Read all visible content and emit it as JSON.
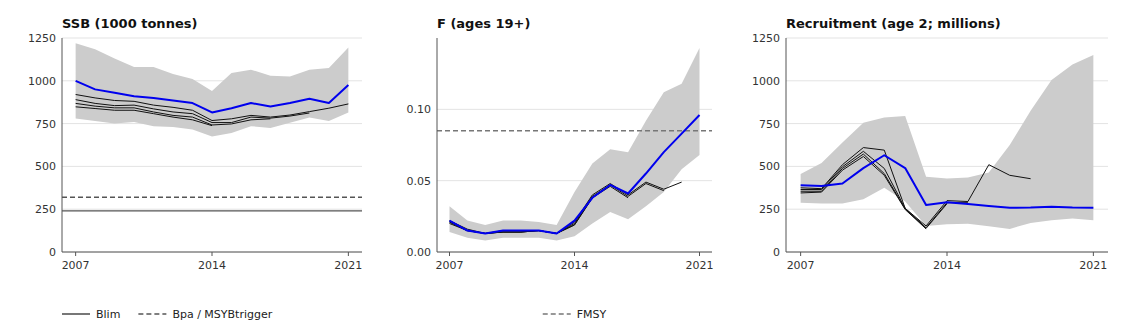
{
  "chart_data": [
    {
      "type": "line",
      "title": "SSB (1000 tonnes)",
      "x": [
        2007,
        2008,
        2009,
        2010,
        2011,
        2012,
        2013,
        2014,
        2015,
        2016,
        2017,
        2018,
        2019,
        2020,
        2021
      ],
      "xlim": [
        2006.3,
        2021.7
      ],
      "xticks": [
        2007,
        2014,
        2021
      ],
      "ylim": [
        0,
        1250
      ],
      "yticks": [
        0,
        250,
        500,
        750,
        1000,
        1250
      ],
      "grid": true,
      "legend": "lower left",
      "series": [
        {
          "color": "#111111",
          "values": [
            920,
            900,
            885,
            880,
            858,
            845,
            828,
            768,
            778,
            798,
            788,
            800,
            820,
            840,
            865
          ]
        },
        {
          "color": "#111111",
          "values": [
            890,
            868,
            855,
            858,
            836,
            818,
            808,
            756,
            756,
            788,
            782,
            794,
            812,
            null,
            null
          ]
        },
        {
          "color": "#111111",
          "values": [
            868,
            852,
            842,
            842,
            818,
            798,
            788,
            742,
            748,
            772,
            778,
            null,
            null,
            null,
            null
          ]
        },
        {
          "color": "#111111",
          "values": [
            848,
            838,
            828,
            828,
            808,
            788,
            772,
            738,
            null,
            null,
            null,
            null,
            null,
            null,
            null
          ]
        },
        {
          "color": "#0000EE",
          "values": [
            1000,
            950,
            930,
            910,
            900,
            885,
            870,
            815,
            840,
            870,
            850,
            870,
            895,
            870,
            975
          ],
          "band_color": "#CCCCCC",
          "upper": [
            1220,
            1185,
            1130,
            1080,
            1080,
            1040,
            1010,
            940,
            1045,
            1065,
            1030,
            1025,
            1065,
            1075,
            1195
          ],
          "lower": [
            780,
            765,
            750,
            760,
            735,
            730,
            715,
            675,
            695,
            735,
            725,
            755,
            785,
            765,
            815
          ]
        }
      ],
      "reference_lines": [
        {
          "name": "Blim",
          "value": 240,
          "color": "#555555",
          "line_style": "solid"
        },
        {
          "name": "Bpa / MSYBtrigger",
          "value": 320,
          "color": "#555555",
          "line_style": "dashed"
        }
      ]
    },
    {
      "type": "line",
      "title": "F (ages 19+)",
      "x": [
        2007,
        2008,
        2009,
        2010,
        2011,
        2012,
        2013,
        2014,
        2015,
        2016,
        2017,
        2018,
        2019,
        2020,
        2021
      ],
      "xlim": [
        2006.3,
        2021.7
      ],
      "xticks": [
        2007,
        2014,
        2021
      ],
      "ylim": [
        0.0,
        0.15
      ],
      "yticks": [
        {
          "value": 0.0,
          "label": "0.00"
        },
        {
          "value": 0.05,
          "label": "0.05"
        },
        {
          "value": 0.1,
          "label": "0.10"
        }
      ],
      "grid": true,
      "legend": "lower center",
      "series": [
        {
          "color": "#111111",
          "values": [
            0.022,
            0.016,
            0.013,
            0.015,
            0.015,
            0.015,
            0.013,
            0.021,
            0.04,
            0.048,
            0.04,
            0.049,
            0.044,
            0.049,
            null
          ]
        },
        {
          "color": "#111111",
          "values": [
            0.021,
            0.015,
            0.013,
            0.014,
            0.014,
            0.015,
            0.013,
            0.02,
            0.039,
            0.047,
            0.039,
            0.048,
            0.043,
            null,
            null
          ]
        },
        {
          "color": "#111111",
          "values": [
            0.021,
            0.015,
            0.013,
            0.014,
            0.014,
            0.015,
            0.013,
            0.019,
            0.038,
            0.046,
            0.038,
            null,
            null,
            null,
            null
          ]
        },
        {
          "color": "#111111",
          "values": [
            0.02,
            0.015,
            0.013,
            0.014,
            0.014,
            0.015,
            0.013,
            0.019,
            0.038,
            null,
            null,
            null,
            null,
            null,
            null
          ]
        },
        {
          "color": "#0000EE",
          "values": [
            0.022,
            0.015,
            0.013,
            0.015,
            0.015,
            0.015,
            0.013,
            0.022,
            0.038,
            0.047,
            0.041,
            0.055,
            0.07,
            0.083,
            0.096
          ],
          "band_color": "#CCCCCC",
          "upper": [
            0.032,
            0.022,
            0.019,
            0.022,
            0.022,
            0.021,
            0.019,
            0.042,
            0.062,
            0.072,
            0.07,
            0.092,
            0.112,
            0.118,
            0.143
          ],
          "lower": [
            0.014,
            0.01,
            0.008,
            0.01,
            0.01,
            0.01,
            0.008,
            0.011,
            0.02,
            0.028,
            0.023,
            0.032,
            0.042,
            0.058,
            0.068
          ]
        }
      ],
      "reference_lines": [
        {
          "name": "FMSY",
          "value": 0.085,
          "color": "#777777",
          "line_style": "dashed"
        }
      ]
    },
    {
      "type": "line",
      "title": "Recruitment (age 2; millions)",
      "x": [
        2007,
        2008,
        2009,
        2010,
        2011,
        2012,
        2013,
        2014,
        2015,
        2016,
        2017,
        2018,
        2019,
        2020,
        2021
      ],
      "xlim": [
        2006.3,
        2021.7
      ],
      "xticks": [
        2007,
        2014,
        2021
      ],
      "ylim": [
        0,
        1250
      ],
      "yticks": [
        0,
        250,
        500,
        750,
        1000,
        1250
      ],
      "grid": true,
      "series": [
        {
          "color": "#111111",
          "values": [
            375,
            370,
            510,
            610,
            595,
            255,
            152,
            300,
            295,
            510,
            448,
            428,
            null,
            null,
            null
          ]
        },
        {
          "color": "#111111",
          "values": [
            365,
            365,
            498,
            588,
            488,
            255,
            142,
            288,
            288,
            null,
            null,
            null,
            null,
            null,
            null
          ]
        },
        {
          "color": "#111111",
          "values": [
            355,
            355,
            488,
            572,
            458,
            252,
            138,
            282,
            null,
            null,
            null,
            null,
            null,
            null,
            null
          ]
        },
        {
          "color": "#111111",
          "values": [
            345,
            350,
            478,
            558,
            448,
            248,
            135,
            null,
            null,
            null,
            null,
            null,
            null,
            null,
            null
          ]
        },
        {
          "color": "#0000EE",
          "values": [
            390,
            385,
            400,
            490,
            565,
            490,
            275,
            290,
            280,
            268,
            258,
            260,
            265,
            260,
            258
          ],
          "band_color": "#CCCCCC",
          "upper": [
            455,
            520,
            640,
            755,
            785,
            795,
            440,
            430,
            435,
            465,
            625,
            825,
            1005,
            1095,
            1150
          ],
          "lower": [
            288,
            283,
            283,
            308,
            375,
            295,
            152,
            162,
            165,
            150,
            135,
            170,
            185,
            195,
            185
          ]
        }
      ]
    }
  ]
}
